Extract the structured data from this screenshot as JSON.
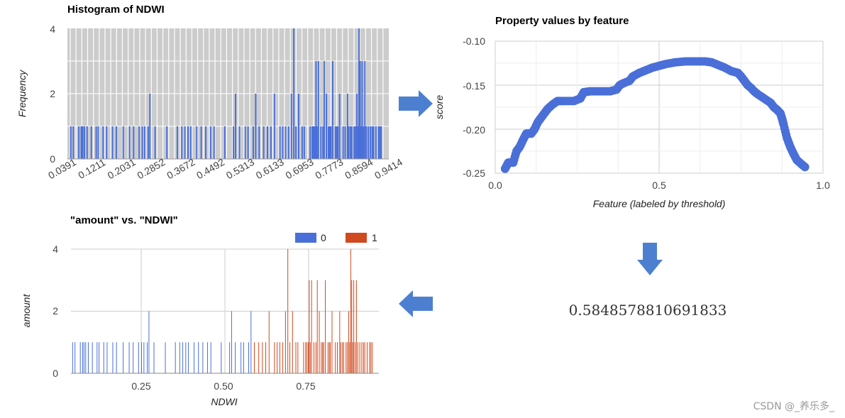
{
  "colors": {
    "blue": "#4a6fd8",
    "orange": "#d04a1f",
    "arrow": "#4d7fd1",
    "grid": "#cccccc"
  },
  "chart_data": [
    {
      "type": "bar",
      "title": "Histogram of NDWI",
      "xlabel": "",
      "ylabel": "Frequency",
      "ylim": [
        0,
        4
      ],
      "yticks": [
        "0",
        "2",
        "4"
      ],
      "xticks": [
        "0.0391",
        "0.1211",
        "0.2031",
        "0.2852",
        "0.3672",
        "0.4492",
        "0.5313",
        "0.6133",
        "0.6953",
        "0.7773",
        "0.8594",
        "0.9414"
      ],
      "xrange": [
        0.0391,
        0.9414
      ],
      "bars": [
        [
          0.045,
          1
        ],
        [
          0.052,
          1
        ],
        [
          0.068,
          1
        ],
        [
          0.075,
          1
        ],
        [
          0.079,
          1
        ],
        [
          0.084,
          1
        ],
        [
          0.092,
          1
        ],
        [
          0.104,
          1
        ],
        [
          0.118,
          1
        ],
        [
          0.124,
          1
        ],
        [
          0.138,
          1
        ],
        [
          0.148,
          1
        ],
        [
          0.165,
          1
        ],
        [
          0.176,
          1
        ],
        [
          0.196,
          1
        ],
        [
          0.214,
          1
        ],
        [
          0.226,
          1
        ],
        [
          0.242,
          1
        ],
        [
          0.251,
          1
        ],
        [
          0.258,
          1
        ],
        [
          0.268,
          1
        ],
        [
          0.273,
          2
        ],
        [
          0.288,
          1
        ],
        [
          0.322,
          1
        ],
        [
          0.352,
          1
        ],
        [
          0.365,
          1
        ],
        [
          0.374,
          1
        ],
        [
          0.383,
          1
        ],
        [
          0.391,
          1
        ],
        [
          0.408,
          1
        ],
        [
          0.421,
          1
        ],
        [
          0.434,
          1
        ],
        [
          0.448,
          1
        ],
        [
          0.458,
          1
        ],
        [
          0.489,
          1
        ],
        [
          0.514,
          1
        ],
        [
          0.52,
          2
        ],
        [
          0.531,
          1
        ],
        [
          0.548,
          1
        ],
        [
          0.556,
          1
        ],
        [
          0.571,
          1
        ],
        [
          0.578,
          2
        ],
        [
          0.588,
          1
        ],
        [
          0.601,
          1
        ],
        [
          0.612,
          1
        ],
        [
          0.622,
          1
        ],
        [
          0.632,
          2
        ],
        [
          0.648,
          1
        ],
        [
          0.656,
          1
        ],
        [
          0.664,
          1
        ],
        [
          0.673,
          1
        ],
        [
          0.681,
          2
        ],
        [
          0.688,
          4
        ],
        [
          0.694,
          1
        ],
        [
          0.702,
          2
        ],
        [
          0.712,
          1
        ],
        [
          0.718,
          1
        ],
        [
          0.735,
          1
        ],
        [
          0.741,
          1
        ],
        [
          0.745,
          1
        ],
        [
          0.749,
          1
        ],
        [
          0.752,
          3
        ],
        [
          0.755,
          1
        ],
        [
          0.759,
          3
        ],
        [
          0.766,
          1
        ],
        [
          0.772,
          1
        ],
        [
          0.776,
          3
        ],
        [
          0.782,
          2
        ],
        [
          0.788,
          1
        ],
        [
          0.792,
          1
        ],
        [
          0.795,
          1
        ],
        [
          0.8,
          3
        ],
        [
          0.808,
          1
        ],
        [
          0.812,
          1
        ],
        [
          0.815,
          1
        ],
        [
          0.82,
          2
        ],
        [
          0.83,
          1
        ],
        [
          0.836,
          1
        ],
        [
          0.843,
          2
        ],
        [
          0.846,
          1
        ],
        [
          0.851,
          1
        ],
        [
          0.855,
          1
        ],
        [
          0.862,
          1
        ],
        [
          0.866,
          1
        ],
        [
          0.87,
          2
        ],
        [
          0.873,
          1
        ],
        [
          0.876,
          4
        ],
        [
          0.879,
          3
        ],
        [
          0.882,
          1
        ],
        [
          0.885,
          3
        ],
        [
          0.889,
          1
        ],
        [
          0.893,
          3
        ],
        [
          0.897,
          1
        ],
        [
          0.903,
          1
        ],
        [
          0.909,
          1
        ],
        [
          0.914,
          1
        ],
        [
          0.918,
          1
        ],
        [
          0.925,
          1
        ],
        [
          0.932,
          1
        ],
        [
          0.936,
          1
        ],
        [
          0.94,
          1
        ]
      ]
    },
    {
      "type": "scatter",
      "title": "Property values by feature",
      "xlabel": "Feature (labeled by threshold)",
      "ylabel": "score",
      "xlim": [
        0.0,
        1.0
      ],
      "ylim": [
        -0.25,
        -0.1
      ],
      "xticks": [
        "0.0",
        "0.5",
        "1.0"
      ],
      "yticks": [
        "-0.10",
        "-0.15",
        "-0.20",
        "-0.25"
      ],
      "curve": [
        [
          0.03,
          -0.245
        ],
        [
          0.04,
          -0.238
        ],
        [
          0.055,
          -0.238
        ],
        [
          0.065,
          -0.225
        ],
        [
          0.075,
          -0.22
        ],
        [
          0.085,
          -0.212
        ],
        [
          0.095,
          -0.205
        ],
        [
          0.11,
          -0.205
        ],
        [
          0.12,
          -0.2
        ],
        [
          0.13,
          -0.192
        ],
        [
          0.14,
          -0.187
        ],
        [
          0.15,
          -0.182
        ],
        [
          0.16,
          -0.177
        ],
        [
          0.175,
          -0.172
        ],
        [
          0.19,
          -0.168
        ],
        [
          0.21,
          -0.168
        ],
        [
          0.24,
          -0.168
        ],
        [
          0.26,
          -0.165
        ],
        [
          0.27,
          -0.158
        ],
        [
          0.29,
          -0.157
        ],
        [
          0.32,
          -0.157
        ],
        [
          0.35,
          -0.157
        ],
        [
          0.37,
          -0.155
        ],
        [
          0.38,
          -0.15
        ],
        [
          0.39,
          -0.148
        ],
        [
          0.41,
          -0.145
        ],
        [
          0.42,
          -0.14
        ],
        [
          0.44,
          -0.136
        ],
        [
          0.46,
          -0.133
        ],
        [
          0.48,
          -0.13
        ],
        [
          0.5,
          -0.128
        ],
        [
          0.52,
          -0.126
        ],
        [
          0.55,
          -0.124
        ],
        [
          0.58,
          -0.123
        ],
        [
          0.61,
          -0.123
        ],
        [
          0.64,
          -0.123
        ],
        [
          0.66,
          -0.124
        ],
        [
          0.68,
          -0.127
        ],
        [
          0.7,
          -0.13
        ],
        [
          0.72,
          -0.134
        ],
        [
          0.74,
          -0.136
        ],
        [
          0.75,
          -0.14
        ],
        [
          0.76,
          -0.145
        ],
        [
          0.77,
          -0.15
        ],
        [
          0.78,
          -0.153
        ],
        [
          0.79,
          -0.157
        ],
        [
          0.8,
          -0.16
        ],
        [
          0.82,
          -0.165
        ],
        [
          0.84,
          -0.17
        ],
        [
          0.85,
          -0.175
        ],
        [
          0.86,
          -0.178
        ],
        [
          0.87,
          -0.182
        ],
        [
          0.875,
          -0.188
        ],
        [
          0.88,
          -0.195
        ],
        [
          0.89,
          -0.21
        ],
        [
          0.9,
          -0.22
        ],
        [
          0.91,
          -0.228
        ],
        [
          0.92,
          -0.235
        ],
        [
          0.935,
          -0.24
        ],
        [
          0.945,
          -0.243
        ]
      ]
    },
    {
      "type": "bar",
      "title": "\"amount\" vs. \"NDWI\"",
      "xlabel": "NDWI",
      "ylabel": "amount",
      "ylim": [
        0,
        4
      ],
      "xlim": [
        0.04,
        0.96
      ],
      "yticks": [
        "0",
        "2",
        "4"
      ],
      "xticks": [
        0.25,
        0.5,
        0.75
      ],
      "xtick_labels": [
        "0.25",
        "0.50",
        "0.75"
      ],
      "legend": [
        "0",
        "1"
      ],
      "split": 0.58,
      "bars": [
        [
          0.045,
          1
        ],
        [
          0.052,
          1
        ],
        [
          0.068,
          1
        ],
        [
          0.075,
          1
        ],
        [
          0.079,
          1
        ],
        [
          0.084,
          1
        ],
        [
          0.092,
          1
        ],
        [
          0.104,
          1
        ],
        [
          0.118,
          1
        ],
        [
          0.124,
          1
        ],
        [
          0.138,
          1
        ],
        [
          0.148,
          1
        ],
        [
          0.165,
          1
        ],
        [
          0.176,
          1
        ],
        [
          0.196,
          1
        ],
        [
          0.214,
          1
        ],
        [
          0.226,
          1
        ],
        [
          0.242,
          1
        ],
        [
          0.251,
          1
        ],
        [
          0.258,
          1
        ],
        [
          0.268,
          1
        ],
        [
          0.273,
          2
        ],
        [
          0.288,
          1
        ],
        [
          0.322,
          1
        ],
        [
          0.352,
          1
        ],
        [
          0.365,
          1
        ],
        [
          0.374,
          1
        ],
        [
          0.383,
          1
        ],
        [
          0.391,
          1
        ],
        [
          0.408,
          1
        ],
        [
          0.421,
          1
        ],
        [
          0.434,
          1
        ],
        [
          0.448,
          1
        ],
        [
          0.458,
          1
        ],
        [
          0.489,
          1
        ],
        [
          0.514,
          1
        ],
        [
          0.52,
          2
        ],
        [
          0.531,
          1
        ],
        [
          0.548,
          1
        ],
        [
          0.556,
          1
        ],
        [
          0.571,
          1
        ],
        [
          0.578,
          2
        ],
        [
          0.588,
          1
        ],
        [
          0.601,
          1
        ],
        [
          0.612,
          1
        ],
        [
          0.622,
          1
        ],
        [
          0.632,
          2
        ],
        [
          0.648,
          1
        ],
        [
          0.656,
          1
        ],
        [
          0.664,
          1
        ],
        [
          0.673,
          1
        ],
        [
          0.681,
          2
        ],
        [
          0.688,
          4
        ],
        [
          0.694,
          1
        ],
        [
          0.702,
          2
        ],
        [
          0.712,
          1
        ],
        [
          0.718,
          1
        ],
        [
          0.735,
          1
        ],
        [
          0.741,
          1
        ],
        [
          0.745,
          1
        ],
        [
          0.749,
          1
        ],
        [
          0.752,
          3
        ],
        [
          0.755,
          1
        ],
        [
          0.759,
          3
        ],
        [
          0.766,
          1
        ],
        [
          0.772,
          1
        ],
        [
          0.776,
          3
        ],
        [
          0.782,
          2
        ],
        [
          0.788,
          1
        ],
        [
          0.792,
          1
        ],
        [
          0.795,
          1
        ],
        [
          0.8,
          3
        ],
        [
          0.808,
          1
        ],
        [
          0.812,
          1
        ],
        [
          0.815,
          1
        ],
        [
          0.82,
          2
        ],
        [
          0.83,
          1
        ],
        [
          0.836,
          1
        ],
        [
          0.843,
          2
        ],
        [
          0.846,
          1
        ],
        [
          0.851,
          1
        ],
        [
          0.855,
          1
        ],
        [
          0.862,
          1
        ],
        [
          0.866,
          1
        ],
        [
          0.87,
          2
        ],
        [
          0.873,
          1
        ],
        [
          0.876,
          4
        ],
        [
          0.879,
          3
        ],
        [
          0.882,
          1
        ],
        [
          0.885,
          3
        ],
        [
          0.889,
          1
        ],
        [
          0.893,
          3
        ],
        [
          0.897,
          1
        ],
        [
          0.903,
          1
        ],
        [
          0.909,
          1
        ],
        [
          0.914,
          1
        ],
        [
          0.918,
          1
        ],
        [
          0.925,
          1
        ],
        [
          0.932,
          1
        ],
        [
          0.936,
          1
        ],
        [
          0.94,
          1
        ]
      ]
    }
  ],
  "result_value": "0.5848578810691833",
  "watermark": "CSDN @_养乐多_"
}
